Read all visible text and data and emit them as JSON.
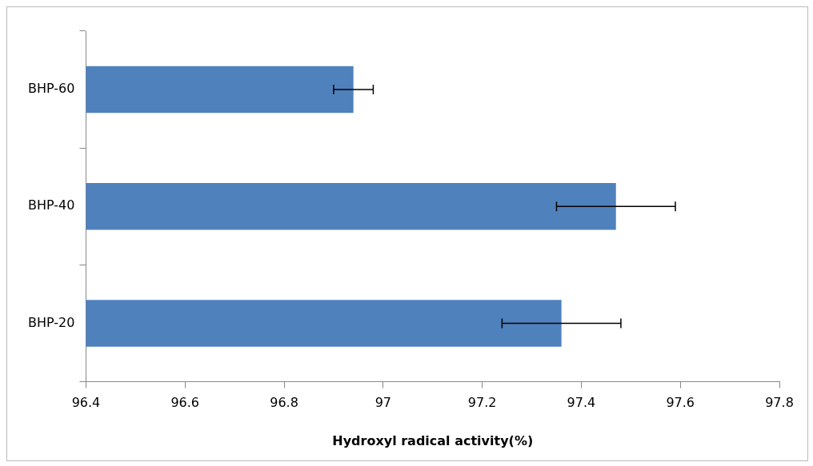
{
  "chart_data": {
    "type": "bar",
    "orientation": "horizontal",
    "xlabel": "Hydroxyl radical activity(%)",
    "categories": [
      "BHP-60",
      "BHP-40",
      "BHP-20"
    ],
    "values": [
      96.94,
      97.47,
      97.36
    ],
    "errors": [
      0.04,
      0.12,
      0.12
    ],
    "color": "#4f81bd",
    "xlim": [
      96.4,
      97.8
    ],
    "xticks": [
      96.4,
      96.6,
      96.8,
      97,
      97.2,
      97.4,
      97.6,
      97.8
    ],
    "grid": false,
    "legend": false
  }
}
